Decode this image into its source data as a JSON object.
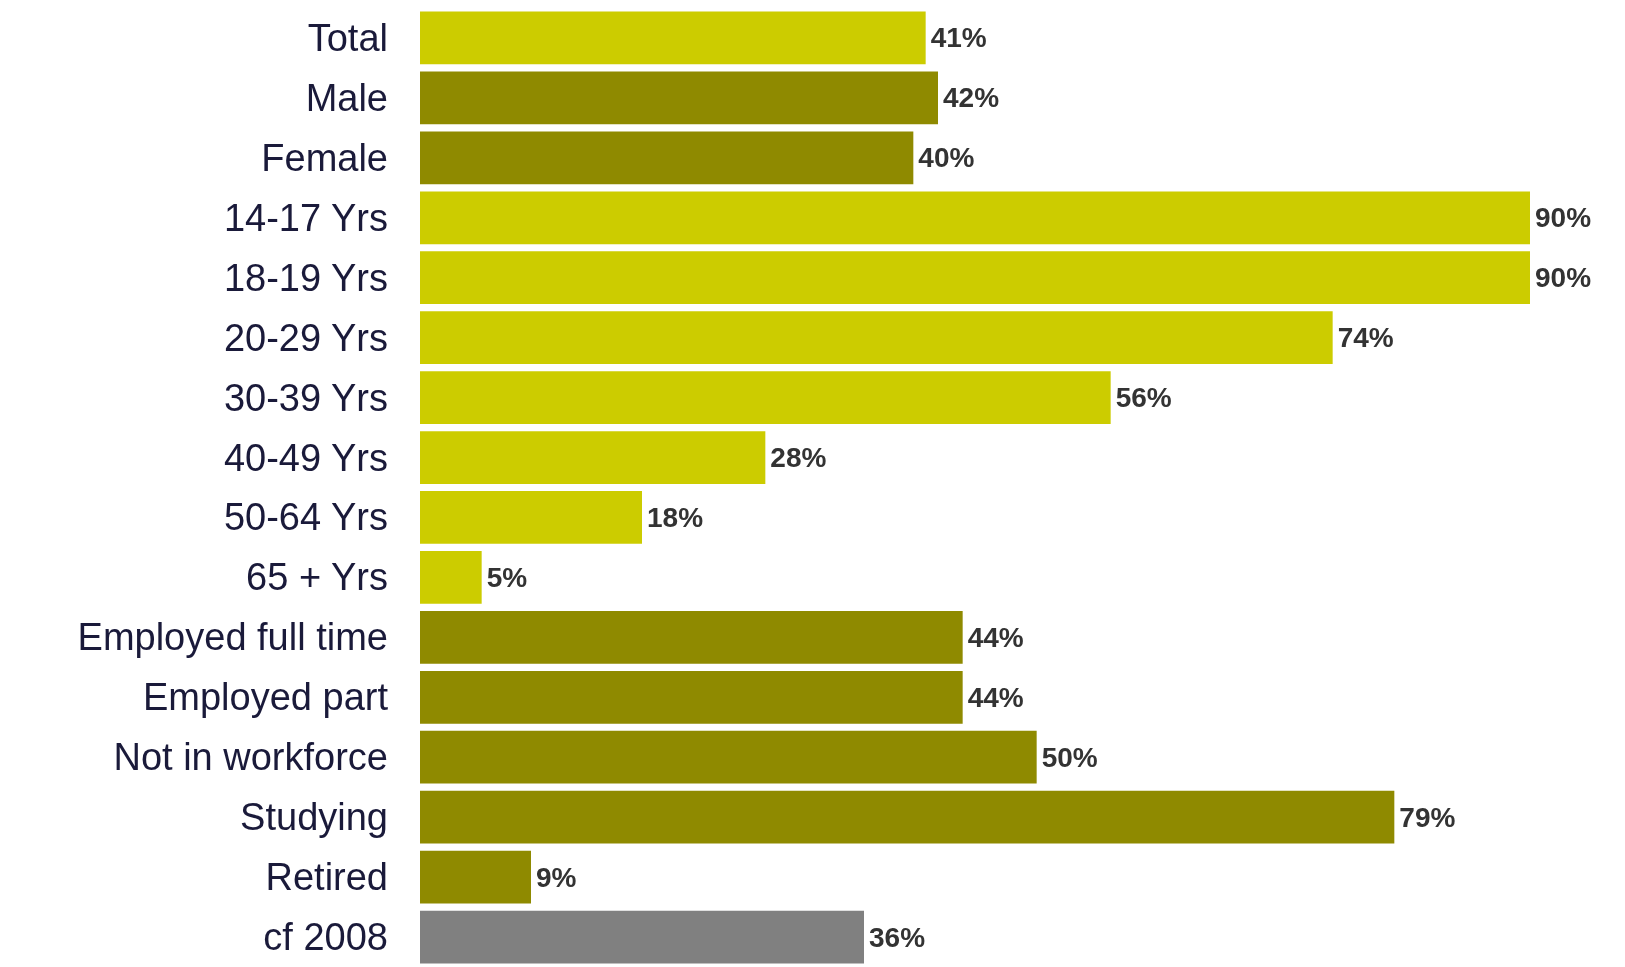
{
  "chart_data": {
    "type": "bar",
    "orientation": "horizontal",
    "categories": [
      "Total",
      "Male",
      "Female",
      "14-17 Yrs",
      "18-19 Yrs",
      "20-29 Yrs",
      "30-39 Yrs",
      "40-49 Yrs",
      "50-64 Yrs",
      "65 + Yrs",
      "Employed full time",
      "Employed part",
      "Not in workforce",
      "Studying",
      "Retired",
      "cf 2008"
    ],
    "values": [
      41,
      42,
      40,
      90,
      90,
      74,
      56,
      28,
      18,
      5,
      44,
      44,
      50,
      79,
      9,
      36
    ],
    "value_labels": [
      "41%",
      "42%",
      "40%",
      "90%",
      "90%",
      "74%",
      "56%",
      "28%",
      "18%",
      "5%",
      "44%",
      "44%",
      "50%",
      "79%",
      "9%",
      "36%"
    ],
    "colors": [
      "#cccc00",
      "#8f8a00",
      "#8f8a00",
      "#cccc00",
      "#cccc00",
      "#cccc00",
      "#cccc00",
      "#cccc00",
      "#cccc00",
      "#cccc00",
      "#8f8a00",
      "#8f8a00",
      "#8f8a00",
      "#8f8a00",
      "#8f8a00",
      "#808080"
    ]
  }
}
